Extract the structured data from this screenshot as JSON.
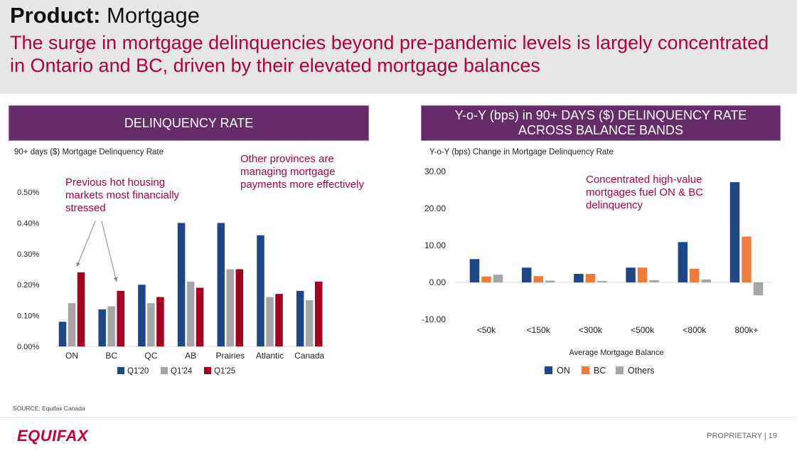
{
  "header": {
    "title_bold": "Product:",
    "title_rest": " Mortgage",
    "subtitle": "The surge in mortgage delinquencies beyond pre-pandemic levels is largely concentrated in Ontario and BC, driven by their elevated mortgage balances"
  },
  "left": {
    "panel_title": "DELINQUENCY RATE",
    "chart_label": "90+ days ($) Mortgage Delinquency Rate",
    "annotation_1": "Previous hot housing markets most financially stressed",
    "annotation_2": "Other provinces are managing mortgage payments more effectively"
  },
  "right": {
    "panel_title_line1": "Y-o-Y (bps) in 90+ DAYS ($) DELINQUENCY RATE",
    "panel_title_line2": "ACROSS BALANCE BANDS",
    "chart_label": "Y-o-Y (bps) Change in Mortgage Delinquency Rate",
    "annotation": "Concentrated high-value mortgages fuel ON & BC delinquency"
  },
  "footer": {
    "source": "SOURCE: Equifax Canada",
    "logo": "EQUIFAX",
    "proprietary": "PROPRIETARY  |  19"
  },
  "colors": {
    "purple_header": "#652c69",
    "crimson": "#b3003a",
    "navy": "#1f4787",
    "gray": "#a6a6a6",
    "dark_red": "#a50021",
    "orange": "#ef7c3a"
  },
  "chart_data": [
    {
      "type": "bar",
      "categories": [
        "ON",
        "BC",
        "QC",
        "AB",
        "Prairies",
        "Atlantic",
        "Canada"
      ],
      "series": [
        {
          "name": "Q1'20",
          "color": "#1f4787",
          "values": [
            0.08,
            0.12,
            0.2,
            0.4,
            0.4,
            0.36,
            0.18
          ]
        },
        {
          "name": "Q1'24",
          "color": "#a6a6a6",
          "values": [
            0.14,
            0.13,
            0.14,
            0.21,
            0.25,
            0.16,
            0.15
          ]
        },
        {
          "name": "Q1'25",
          "color": "#a50021",
          "values": [
            0.24,
            0.18,
            0.16,
            0.19,
            0.25,
            0.17,
            0.21
          ]
        }
      ],
      "ylim": [
        0,
        0.5
      ],
      "yticks": [
        "0.00%",
        "0.10%",
        "0.20%",
        "0.30%",
        "0.40%",
        "0.50%"
      ],
      "legend": "bottom",
      "grid": false
    },
    {
      "type": "bar",
      "categories": [
        "<50k",
        "<150k",
        "<300k",
        "<500k",
        "<800k",
        "800k+"
      ],
      "series": [
        {
          "name": "ON",
          "color": "#1f4787",
          "values": [
            6.3,
            4.0,
            2.3,
            4.0,
            10.9,
            27.1
          ]
        },
        {
          "name": "BC",
          "color": "#ef7c3a",
          "values": [
            1.6,
            1.7,
            2.3,
            4.0,
            3.7,
            12.4
          ]
        },
        {
          "name": "Others",
          "color": "#a6a6a6",
          "values": [
            2.1,
            0.5,
            0.4,
            0.6,
            0.8,
            -3.5
          ]
        }
      ],
      "xlabel": "Average Mortgage Balance",
      "ylim": [
        -10,
        30
      ],
      "yticks": [
        "-10.00",
        "0.00",
        "10.00",
        "20.00",
        "30.00"
      ],
      "legend": "bottom",
      "grid": false
    }
  ]
}
